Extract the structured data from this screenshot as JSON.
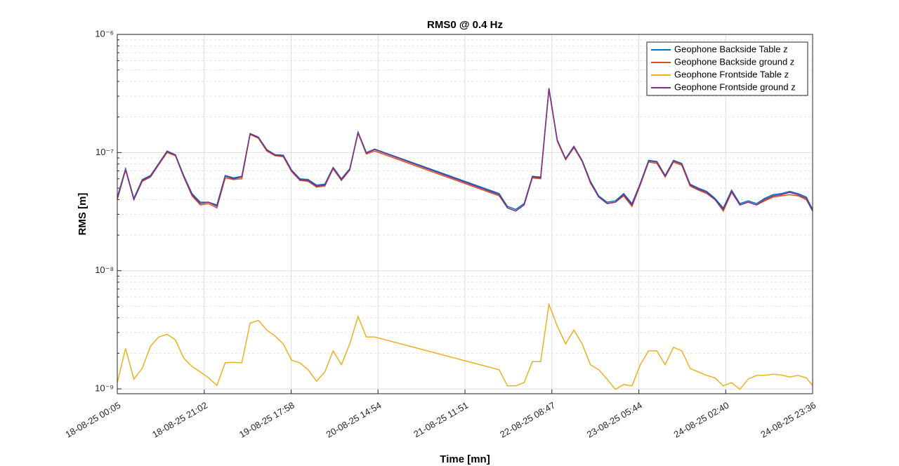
{
  "chart_data": {
    "type": "line",
    "title": "RMS0 @ 0.4 Hz",
    "xlabel": "Time [mn]",
    "ylabel": "RMS [m]",
    "yscale": "log",
    "grid": true,
    "minor_grid": true,
    "legend": "northeast",
    "ylim": [
      9.1e-10,
      1e-06
    ],
    "yticks": [
      {
        "value": 1e-09,
        "label": "10⁻⁹"
      },
      {
        "value": 1e-08,
        "label": "10⁻⁸"
      },
      {
        "value": 1e-07,
        "label": "10⁻⁷"
      },
      {
        "value": 1e-06,
        "label": "10⁻⁶"
      }
    ],
    "xlim": [
      "18-08-25 00:05",
      "24-08-25 23:36"
    ],
    "xticks": [
      "18-08-25 00:05",
      "18-08-25 21:02",
      "19-08-25 17:58",
      "20-08-25 14:54",
      "21-08-25 11:51",
      "22-08-25 08:47",
      "23-08-25 05:44",
      "24-08-25 02:40",
      "24-08-25 23:36"
    ],
    "x": [
      "18-08-25 00:05",
      "18-08-25 02:05",
      "18-08-25 04:05",
      "18-08-25 06:05",
      "18-08-25 08:05",
      "18-08-25 10:05",
      "18-08-25 12:05",
      "18-08-25 14:05",
      "18-08-25 16:05",
      "18-08-25 18:05",
      "18-08-25 20:05",
      "18-08-25 22:05",
      "19-08-25 00:05",
      "19-08-25 02:05",
      "19-08-25 04:05",
      "19-08-25 06:05",
      "19-08-25 08:05",
      "19-08-25 10:05",
      "19-08-25 12:05",
      "19-08-25 14:05",
      "19-08-25 16:05",
      "19-08-25 18:05",
      "19-08-25 20:05",
      "19-08-25 22:05",
      "20-08-25 00:05",
      "20-08-25 02:05",
      "20-08-25 04:05",
      "20-08-25 06:05",
      "20-08-25 08:05",
      "20-08-25 10:05",
      "20-08-25 12:05",
      "20-08-25 14:05",
      "21-08-25 20:05",
      "21-08-25 22:05",
      "22-08-25 00:05",
      "22-08-25 02:05",
      "22-08-25 04:05",
      "22-08-25 06:05",
      "22-08-25 08:05",
      "22-08-25 10:05",
      "22-08-25 12:05",
      "22-08-25 14:05",
      "22-08-25 16:05",
      "22-08-25 18:05",
      "22-08-25 20:05",
      "22-08-25 22:05",
      "23-08-25 00:05",
      "23-08-25 02:05",
      "23-08-25 04:05",
      "23-08-25 06:05",
      "23-08-25 08:05",
      "23-08-25 10:05",
      "23-08-25 12:05",
      "23-08-25 14:05",
      "23-08-25 16:05",
      "23-08-25 18:05",
      "23-08-25 20:05",
      "23-08-25 22:05",
      "24-08-25 00:05",
      "24-08-25 02:05",
      "24-08-25 04:05",
      "24-08-25 06:05",
      "24-08-25 08:05",
      "24-08-25 10:05",
      "24-08-25 12:05",
      "24-08-25 14:05",
      "24-08-25 16:05",
      "24-08-25 18:05",
      "24-08-25 20:05",
      "24-08-25 22:05",
      "24-08-25 23:36"
    ],
    "series": [
      {
        "name": "Geophone Backside Table z",
        "color": "#0072BD",
        "values": [
          4.2e-08,
          7.3e-08,
          4.1e-08,
          5.9e-08,
          6.4e-08,
          8.1e-08,
          1.03e-07,
          9.6e-08,
          6.4e-08,
          4.5e-08,
          3.8e-08,
          3.8e-08,
          3.6e-08,
          6.4e-08,
          6.1e-08,
          6.3e-08,
          1.45e-07,
          1.35e-07,
          1.06e-07,
          9.6e-08,
          9.5e-08,
          7.1e-08,
          6e-08,
          5.9e-08,
          5.3e-08,
          5.4e-08,
          7.5e-08,
          6e-08,
          7.3e-08,
          1.49e-07,
          1e-07,
          1.07e-07,
          4.5e-08,
          3.5e-08,
          3.3e-08,
          3.7e-08,
          6.3e-08,
          6.2e-08,
          3.5e-07,
          1.28e-07,
          8.9e-08,
          1.13e-07,
          8.6e-08,
          5.7e-08,
          4.3e-08,
          3.8e-08,
          3.9e-08,
          4.5e-08,
          3.7e-08,
          5.5e-08,
          8.6e-08,
          8.4e-08,
          6.4e-08,
          8.6e-08,
          8.1e-08,
          5.4e-08,
          5e-08,
          4.7e-08,
          4.1e-08,
          3.4e-08,
          4.8e-08,
          3.7e-08,
          3.9e-08,
          3.7e-08,
          4.1e-08,
          4.4e-08,
          4.5e-08,
          4.7e-08,
          4.5e-08,
          4.2e-08,
          3.3e-08
        ]
      },
      {
        "name": "Geophone Backside ground z",
        "color": "#D95319",
        "values": [
          4e-08,
          7.1e-08,
          4e-08,
          5.7e-08,
          6.2e-08,
          7.9e-08,
          1e-07,
          9.4e-08,
          6.2e-08,
          4.3e-08,
          3.6e-08,
          3.7e-08,
          3.4e-08,
          6.1e-08,
          5.9e-08,
          6e-08,
          1.42e-07,
          1.32e-07,
          1.03e-07,
          9.4e-08,
          9.2e-08,
          6.9e-08,
          5.8e-08,
          5.7e-08,
          5.1e-08,
          5.2e-08,
          7.3e-08,
          5.8e-08,
          7.1e-08,
          1.46e-07,
          9.7e-08,
          1.03e-07,
          4.3e-08,
          3.4e-08,
          3.2e-08,
          3.6e-08,
          6.1e-08,
          6e-08,
          3.4e-07,
          1.25e-07,
          8.7e-08,
          1.1e-07,
          8.4e-08,
          5.5e-08,
          4.2e-08,
          3.7e-08,
          3.8e-08,
          4.3e-08,
          3.5e-08,
          5.3e-08,
          8.3e-08,
          8.1e-08,
          6.2e-08,
          8.3e-08,
          7.8e-08,
          5.2e-08,
          4.8e-08,
          4.5e-08,
          4e-08,
          3.2e-08,
          4.6e-08,
          3.6e-08,
          3.8e-08,
          3.6e-08,
          3.9e-08,
          4.2e-08,
          4.3e-08,
          4.4e-08,
          4.3e-08,
          4e-08,
          3.2e-08
        ]
      },
      {
        "name": "Geophone Frontside Table z",
        "color": "#EDB120",
        "values": [
          1.13e-09,
          2.2e-09,
          1.21e-09,
          1.49e-09,
          2.3e-09,
          2.75e-09,
          2.9e-09,
          2.6e-09,
          1.82e-09,
          1.55e-09,
          1.39e-09,
          1.24e-09,
          1.07e-09,
          1.66e-09,
          1.68e-09,
          1.66e-09,
          3.6e-09,
          3.8e-09,
          3.15e-09,
          2.8e-09,
          2.4e-09,
          1.75e-09,
          1.66e-09,
          1.45e-09,
          1.16e-09,
          1.39e-09,
          2.1e-09,
          1.6e-09,
          2.4e-09,
          4.1e-09,
          2.75e-09,
          2.75e-09,
          1.45e-09,
          1.06e-09,
          1.06e-09,
          1.13e-09,
          1.7e-09,
          1.7e-09,
          5.2e-09,
          3.4e-09,
          2.4e-09,
          3.15e-09,
          2.4e-09,
          1.6e-09,
          1.45e-09,
          1.21e-09,
          9.9e-10,
          1.09e-09,
          1.06e-09,
          1.6e-09,
          2.1e-09,
          2.1e-09,
          1.6e-09,
          2.25e-09,
          2.1e-09,
          1.49e-09,
          1.39e-09,
          1.3e-09,
          1.24e-09,
          1.06e-09,
          1.13e-09,
          9.9e-10,
          1.21e-09,
          1.3e-09,
          1.3e-09,
          1.33e-09,
          1.31e-09,
          1.26e-09,
          1.3e-09,
          1.24e-09,
          1.07e-09
        ]
      },
      {
        "name": "Geophone Frontside ground z",
        "color": "#7E2F8E",
        "values": [
          4.1e-08,
          7.2e-08,
          4e-08,
          5.8e-08,
          6.3e-08,
          8e-08,
          1.02e-07,
          9.5e-08,
          6.3e-08,
          4.4e-08,
          3.7e-08,
          3.8e-08,
          3.5e-08,
          6.3e-08,
          6e-08,
          6.2e-08,
          1.44e-07,
          1.34e-07,
          1.05e-07,
          9.5e-08,
          9.4e-08,
          7e-08,
          5.9e-08,
          5.8e-08,
          5.2e-08,
          5.3e-08,
          7.4e-08,
          5.9e-08,
          7.2e-08,
          1.48e-07,
          9.9e-08,
          1.06e-07,
          4.4e-08,
          3.4e-08,
          3.2e-08,
          3.6e-08,
          6.2e-08,
          6.1e-08,
          3.5e-07,
          1.27e-07,
          8.8e-08,
          1.12e-07,
          8.5e-08,
          5.6e-08,
          4.2e-08,
          3.7e-08,
          3.8e-08,
          4.4e-08,
          3.6e-08,
          5.4e-08,
          8.5e-08,
          8.3e-08,
          6.3e-08,
          8.5e-08,
          8e-08,
          5.3e-08,
          4.9e-08,
          4.6e-08,
          4e-08,
          3.3e-08,
          4.7e-08,
          3.6e-08,
          3.8e-08,
          3.6e-08,
          4e-08,
          4.3e-08,
          4.4e-08,
          4.6e-08,
          4.4e-08,
          4.1e-08,
          3.2e-08
        ]
      }
    ]
  }
}
